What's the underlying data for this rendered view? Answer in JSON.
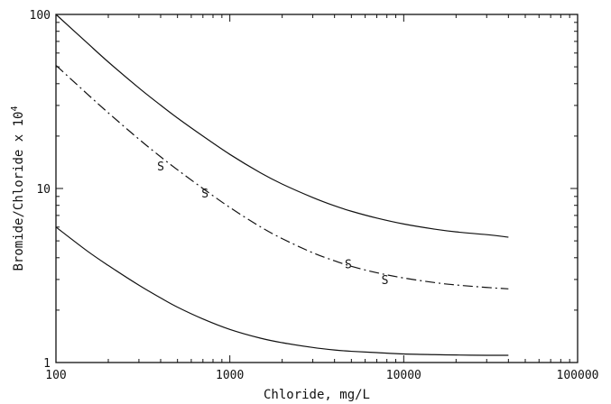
{
  "chart_data": {
    "type": "line",
    "title": "",
    "xlabel": "Chloride, mg/L",
    "ylabel_main": "Bromide/Chloride x 10",
    "ylabel_exponent": "4",
    "x_scale": "log",
    "y_scale": "log",
    "xlim": [
      100,
      100000
    ],
    "ylim": [
      1,
      100
    ],
    "x_ticks": [
      {
        "value": 100,
        "label": "100"
      },
      {
        "value": 1000,
        "label": "1000"
      },
      {
        "value": 10000,
        "label": "10000"
      },
      {
        "value": 100000,
        "label": "100000"
      }
    ],
    "y_ticks": [
      {
        "value": 1,
        "label": "1"
      },
      {
        "value": 10,
        "label": "10"
      },
      {
        "value": 100,
        "label": "100"
      }
    ],
    "grid": false,
    "series": [
      {
        "style": "solid",
        "x": [
          100,
          150,
          200,
          300,
          400,
          500,
          700,
          1000,
          1500,
          2000,
          3000,
          4000,
          5000,
          7000,
          10000,
          15000,
          20000,
          30000,
          40000
        ],
        "y": [
          100,
          69.1,
          53.3,
          37.8,
          30.1,
          25.4,
          20.0,
          15.7,
          12.3,
          10.6,
          8.87,
          7.95,
          7.4,
          6.76,
          6.25,
          5.84,
          5.63,
          5.43,
          5.25
        ]
      },
      {
        "style": "dash-dot",
        "x": [
          100,
          150,
          200,
          300,
          400,
          500,
          700,
          1000,
          1500,
          2000,
          3000,
          4000,
          5000,
          7000,
          10000,
          15000,
          20000,
          30000,
          40000
        ],
        "y": [
          51,
          35.2,
          27.2,
          19.2,
          15.2,
          12.8,
          10.0,
          7.78,
          6.02,
          5.15,
          4.27,
          3.84,
          3.57,
          3.28,
          3.06,
          2.88,
          2.79,
          2.7,
          2.65
        ]
      },
      {
        "style": "solid",
        "x": [
          100,
          150,
          200,
          300,
          400,
          500,
          700,
          1000,
          1500,
          2000,
          3000,
          4000,
          5000,
          7000,
          10000,
          15000,
          20000,
          30000,
          40000
        ],
        "y": [
          6.0,
          4.4,
          3.61,
          2.78,
          2.35,
          2.08,
          1.78,
          1.55,
          1.38,
          1.3,
          1.22,
          1.18,
          1.16,
          1.14,
          1.12,
          1.11,
          1.105,
          1.1,
          1.1
        ]
      }
    ],
    "markers": [
      {
        "label": "S",
        "x": 400,
        "y": 13.5
      },
      {
        "label": "S",
        "x": 720,
        "y": 9.4
      },
      {
        "label": "S",
        "x": 4800,
        "y": 3.7
      },
      {
        "label": "S",
        "x": 7800,
        "y": 3.0
      }
    ]
  }
}
